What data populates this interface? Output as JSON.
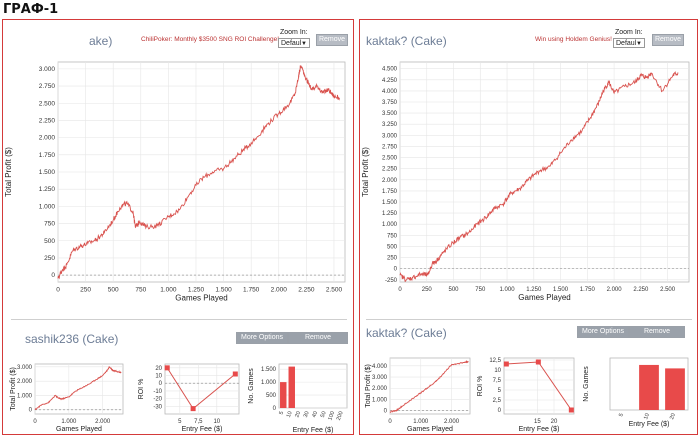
{
  "page": {
    "title": "ГРАФ-1"
  },
  "colors": {
    "line": "#d9534f",
    "bar": "#e84a4a",
    "border": "#d43a3a",
    "grid": "#e6e6e6"
  },
  "left": {
    "header": {
      "player": "ake) ",
      "promo": "ChiliPoker: Monthly $3500 SNG ROI Challenge!",
      "zoom_label": "Zoom In:",
      "zoom_value": "Defaul",
      "remove": "Remove"
    },
    "sub": {
      "player": "sashik236 (Cake)",
      "more_options": "More Options",
      "remove": "Remove"
    }
  },
  "right": {
    "header": {
      "player": "kaktak? (Cake)",
      "promo": "Win using Holdem Genius!",
      "zoom_label": "Zoom In:",
      "zoom_value": "Defaul",
      "remove": "Remove"
    },
    "sub": {
      "player": "kaktak? (Cake)",
      "more_options": "More Options",
      "remove": "Remove"
    }
  },
  "chart_data": [
    {
      "id": "left-main",
      "type": "line",
      "xlabel": "Games Played",
      "ylabel": "Total Profit ($)",
      "xlim": [
        0,
        2600
      ],
      "ylim": [
        -100,
        3100
      ],
      "xticks": [
        0,
        250,
        500,
        750,
        1000,
        1250,
        1500,
        1750,
        2000,
        2250,
        2500
      ],
      "xtick_labels": [
        "0",
        "250",
        "500",
        "750",
        "1.000",
        "1.250",
        "1.500",
        "1.750",
        "2.000",
        "2.250",
        "2.500"
      ],
      "yticks": [
        0,
        250,
        500,
        750,
        1000,
        1250,
        1500,
        1750,
        2000,
        2250,
        2500,
        2750,
        3000
      ],
      "ytick_labels": [
        "0",
        "250",
        "500",
        "750",
        "1.000",
        "1.250",
        "1.500",
        "1.750",
        "2.000",
        "2.250",
        "2.500",
        "2.750",
        "3.000"
      ],
      "zero_line": true,
      "series": [
        {
          "x": [
            0,
            40,
            80,
            130,
            200,
            270,
            350,
            420,
            500,
            560,
            620,
            680,
            700,
            740,
            800,
            900,
            1000,
            1100,
            1200,
            1300,
            1400,
            1500,
            1600,
            1700,
            1800,
            1900,
            2000,
            2100,
            2150,
            2180,
            2200,
            2250,
            2300,
            2350,
            2400,
            2450,
            2500,
            2550
          ],
          "y": [
            -50,
            80,
            150,
            350,
            420,
            460,
            520,
            620,
            800,
            980,
            1050,
            920,
            700,
            780,
            700,
            720,
            850,
            950,
            1200,
            1400,
            1500,
            1550,
            1700,
            1850,
            2000,
            2200,
            2350,
            2500,
            2650,
            2900,
            3050,
            2850,
            2700,
            2750,
            2650,
            2700,
            2600,
            2580
          ]
        }
      ]
    },
    {
      "id": "right-main",
      "type": "line",
      "xlabel": "Games Played",
      "ylabel": "Total Profit ($)",
      "xlim": [
        0,
        2700
      ],
      "ylim": [
        -300,
        4650
      ],
      "xticks": [
        0,
        250,
        500,
        750,
        1000,
        1250,
        1500,
        1750,
        2000,
        2250,
        2500
      ],
      "xtick_labels": [
        "0",
        "250",
        "500",
        "750",
        "1.000",
        "1.250",
        "1.500",
        "1.750",
        "2.000",
        "2.250",
        "2.500"
      ],
      "yticks": [
        -250,
        0,
        250,
        500,
        750,
        1000,
        1250,
        1500,
        1750,
        2000,
        2250,
        2500,
        2750,
        3000,
        3250,
        3500,
        3750,
        4000,
        4250,
        4500
      ],
      "ytick_labels": [
        "-250",
        "0",
        "250",
        "500",
        "750",
        "1.000",
        "1.250",
        "1.500",
        "1.750",
        "2.000",
        "2.250",
        "2.500",
        "2.750",
        "3.000",
        "3.250",
        "3.500",
        "3.750",
        "4.000",
        "4.250",
        "4.500"
      ],
      "zero_line": true,
      "series": [
        {
          "x": [
            0,
            60,
            120,
            200,
            260,
            300,
            350,
            400,
            480,
            560,
            640,
            720,
            800,
            880,
            960,
            1040,
            1120,
            1200,
            1300,
            1400,
            1500,
            1600,
            1700,
            1780,
            1850,
            1900,
            1950,
            2000,
            2100,
            2200,
            2250,
            2300,
            2350,
            2450,
            2550,
            2600
          ],
          "y": [
            -150,
            -250,
            -200,
            -120,
            -150,
            100,
            200,
            350,
            550,
            700,
            800,
            1000,
            1150,
            1350,
            1450,
            1700,
            1800,
            2000,
            2200,
            2300,
            2600,
            2900,
            3100,
            3400,
            3700,
            4000,
            4200,
            3950,
            4100,
            4200,
            4350,
            4300,
            4400,
            4000,
            4350,
            4400
          ]
        }
      ]
    },
    {
      "id": "left-small-line",
      "type": "line",
      "xlabel": "Games Played",
      "ylabel": "Total Profit ($)",
      "xlim": [
        0,
        2600
      ],
      "ylim": [
        -300,
        3200
      ],
      "xticks": [
        0,
        1000,
        2000
      ],
      "xtick_labels": [
        "0",
        "1.000",
        "2.000"
      ],
      "yticks": [
        0,
        1000,
        2000,
        3000
      ],
      "ytick_labels": [
        "0",
        "1.000",
        "2.000",
        "3.000"
      ],
      "zero_line": true,
      "series": [
        {
          "x": [
            0,
            200,
            400,
            600,
            700,
            800,
            1000,
            1200,
            1400,
            1600,
            1800,
            2000,
            2150,
            2200,
            2300,
            2400,
            2550
          ],
          "y": [
            0,
            350,
            500,
            1000,
            800,
            750,
            900,
            1300,
            1550,
            1800,
            2100,
            2400,
            2800,
            3000,
            2750,
            2700,
            2600
          ]
        }
      ]
    },
    {
      "id": "left-small-roi",
      "type": "scatter",
      "xlabel": "Entry Fee ($)",
      "ylabel": "ROI %",
      "xlim": [
        3,
        13
      ],
      "ylim": [
        -40,
        25
      ],
      "xticks": [
        5,
        7.5,
        10
      ],
      "xtick_labels": [
        "5",
        "7,5",
        "10"
      ],
      "yticks": [
        -30,
        -20,
        -10,
        0,
        10,
        20
      ],
      "ytick_labels": [
        "-30",
        "-20",
        "-10",
        "0",
        "10",
        "20"
      ],
      "zero_line": true,
      "series": [
        {
          "x": [
            3.3,
            6.8,
            12.5
          ],
          "y": [
            20,
            -33,
            12
          ]
        }
      ]
    },
    {
      "id": "left-small-games",
      "type": "bar",
      "xlabel": "Entry Fee ($)",
      "ylabel": "No. Games",
      "categories": [
        "5",
        "10",
        "20",
        "30",
        "40",
        "50",
        "100",
        "200"
      ],
      "values": [
        1000,
        1600,
        0,
        0,
        0,
        0,
        0,
        0
      ],
      "ylim": [
        0,
        1700
      ],
      "yticks": [
        0,
        500,
        1000,
        1500
      ],
      "ytick_labels": [
        "0",
        "500",
        "1.000",
        "1.500"
      ]
    },
    {
      "id": "right-small-line",
      "type": "line",
      "xlabel": "Games Played",
      "ylabel": "Total Profit ($)",
      "xlim": [
        0,
        2600
      ],
      "ylim": [
        -300,
        4700
      ],
      "xticks": [
        0,
        1000,
        2000
      ],
      "xtick_labels": [
        "0",
        "1.000",
        "2.000"
      ],
      "yticks": [
        0,
        1000,
        2000,
        3000,
        4000
      ],
      "ytick_labels": [
        "0",
        "1.000",
        "2.000",
        "3.000",
        "4.000"
      ],
      "zero_line": true,
      "series": [
        {
          "x": [
            0,
            200,
            400,
            600,
            800,
            1000,
            1200,
            1400,
            1600,
            1800,
            2000,
            2200,
            2400,
            2550
          ],
          "y": [
            -100,
            0,
            400,
            800,
            1200,
            1600,
            2000,
            2400,
            2900,
            3500,
            4100,
            4200,
            4300,
            4400
          ]
        }
      ]
    },
    {
      "id": "right-small-roi",
      "type": "scatter",
      "xlabel": "Entry Fee ($)",
      "ylabel": "ROI %",
      "xlim": [
        5,
        26
      ],
      "ylim": [
        -1,
        13
      ],
      "xticks": [
        15,
        20
      ],
      "xtick_labels": [
        "15",
        "20"
      ],
      "yticks": [
        0,
        2.5,
        5,
        7.5,
        10,
        12.5
      ],
      "ytick_labels": [
        "0",
        "2,5",
        "5",
        "7,5",
        "10",
        "12,5"
      ],
      "zero_line": false,
      "series": [
        {
          "x": [
            5.7,
            15.3,
            25.2
          ],
          "y": [
            11.5,
            12,
            0
          ]
        }
      ]
    },
    {
      "id": "right-small-games",
      "type": "bar",
      "xlabel": "Entry Fee ($)",
      "ylabel": "No. Games",
      "categories": [
        "5",
        "10",
        "20"
      ],
      "values": [
        0,
        1300,
        1200
      ],
      "ylim": [
        0,
        1500
      ],
      "yticks": [],
      "ytick_labels": []
    }
  ]
}
